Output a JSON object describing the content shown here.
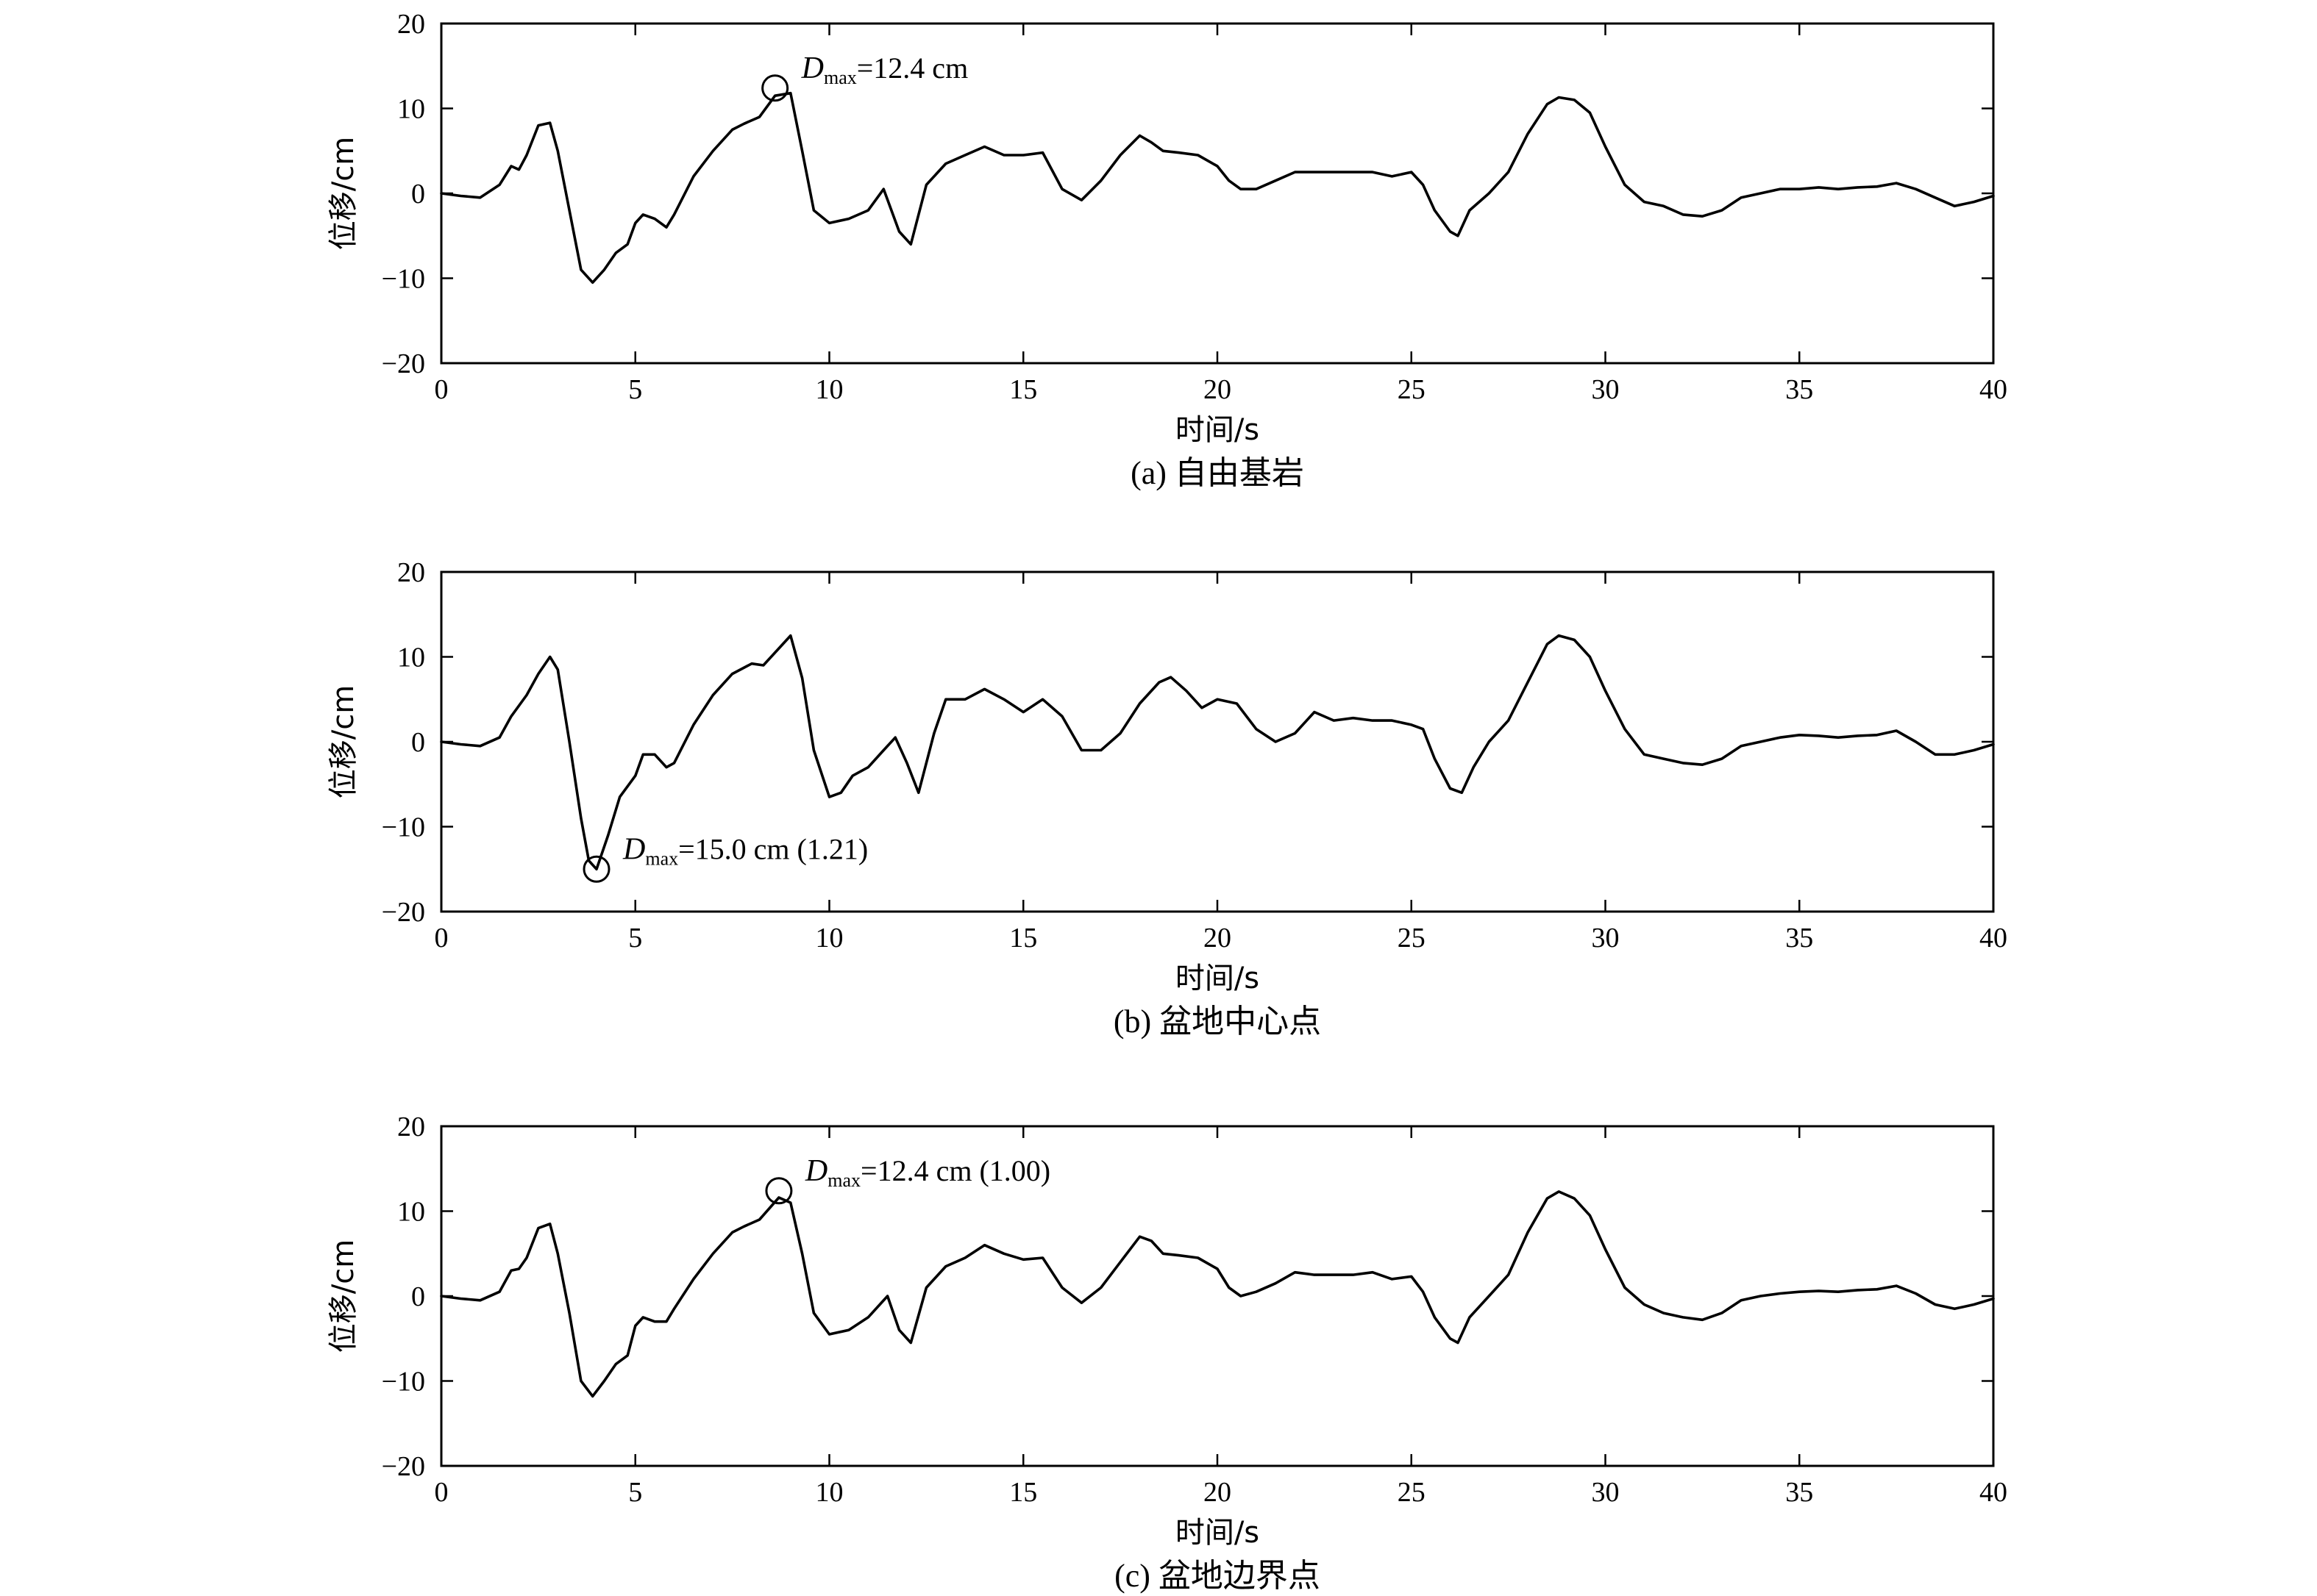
{
  "chart_data": [
    {
      "type": "line",
      "caption": "(a) 自由基岩",
      "xlabel": "时间/s",
      "ylabel": "位移/cm",
      "xlim": [
        0,
        40
      ],
      "ylim": [
        -20,
        20
      ],
      "xticks": [
        0,
        5,
        10,
        15,
        20,
        25,
        30,
        35,
        40
      ],
      "yticks": [
        20,
        10,
        0,
        -10,
        -20
      ],
      "ytick_labels": [
        "20",
        "10",
        "0",
        "−10",
        "−20"
      ],
      "annotation": {
        "symbol": "D",
        "subscript": "max",
        "text": "=12.4 cm",
        "x": 8.6,
        "y": 12.4,
        "position": "right"
      },
      "series": [
        {
          "x": [
            0,
            0.5,
            1.0,
            1.5,
            1.8,
            2.0,
            2.2,
            2.5,
            2.8,
            3.0,
            3.3,
            3.6,
            3.9,
            4.2,
            4.5,
            4.8,
            5.0,
            5.2,
            5.5,
            5.8,
            6.0,
            6.5,
            7.0,
            7.5,
            7.8,
            8.2,
            8.6,
            9.0,
            9.3,
            9.6,
            10.0,
            10.5,
            11.0,
            11.4,
            11.8,
            12.1,
            12.5,
            13.0,
            13.5,
            14.0,
            14.5,
            15.0,
            15.5,
            16.0,
            16.5,
            17.0,
            17.5,
            18.0,
            18.3,
            18.6,
            19.0,
            19.5,
            20.0,
            20.3,
            20.6,
            21.0,
            21.5,
            22.0,
            22.5,
            23.0,
            23.5,
            24.0,
            24.5,
            25.0,
            25.3,
            25.6,
            26.0,
            26.2,
            26.5,
            27.0,
            27.5,
            28.0,
            28.5,
            28.8,
            29.2,
            29.6,
            30.0,
            30.5,
            31.0,
            31.5,
            32.0,
            32.5,
            33.0,
            33.5,
            34.0,
            34.5,
            35.0,
            35.5,
            36.0,
            36.5,
            37.0,
            37.5,
            38.0,
            38.5,
            39.0,
            39.5,
            40.0
          ],
          "y": [
            0,
            -0.3,
            -0.5,
            1.0,
            3.2,
            2.8,
            4.5,
            8.0,
            8.3,
            5.0,
            -2.0,
            -9.0,
            -10.5,
            -9.0,
            -7.0,
            -6.0,
            -3.5,
            -2.5,
            -3.0,
            -4.0,
            -2.5,
            2.0,
            5.0,
            7.5,
            8.2,
            9.0,
            11.5,
            11.8,
            5.0,
            -2.0,
            -3.5,
            -3.0,
            -2.0,
            0.5,
            -4.5,
            -6.0,
            1.0,
            3.5,
            4.5,
            5.5,
            4.5,
            4.5,
            4.8,
            0.5,
            -0.8,
            1.5,
            4.5,
            6.8,
            6.0,
            5.0,
            4.8,
            4.5,
            3.2,
            1.5,
            0.5,
            0.5,
            1.5,
            2.5,
            2.5,
            2.5,
            2.5,
            2.5,
            2.0,
            2.5,
            1.0,
            -2.0,
            -4.5,
            -5.0,
            -2.0,
            0.0,
            2.5,
            7.0,
            10.5,
            11.3,
            11.0,
            9.5,
            5.5,
            1.0,
            -1.0,
            -1.5,
            -2.5,
            -2.7,
            -2.0,
            -0.5,
            0.0,
            0.5,
            0.5,
            0.7,
            0.5,
            0.7,
            0.8,
            1.2,
            0.5,
            -0.5,
            -1.5,
            -1.0,
            -0.3
          ]
        }
      ]
    },
    {
      "type": "line",
      "caption": "(b) 盆地中心点",
      "xlabel": "时间/s",
      "ylabel": "位移/cm",
      "xlim": [
        0,
        40
      ],
      "ylim": [
        -20,
        20
      ],
      "xticks": [
        0,
        5,
        10,
        15,
        20,
        25,
        30,
        35,
        40
      ],
      "yticks": [
        20,
        10,
        0,
        -10,
        -20
      ],
      "ytick_labels": [
        "20",
        "10",
        "0",
        "−10",
        "−20"
      ],
      "annotation": {
        "symbol": "D",
        "subscript": "max",
        "text": "=15.0 cm (1.21)",
        "x": 4.0,
        "y": -15.0,
        "position": "right"
      },
      "series": [
        {
          "x": [
            0,
            0.5,
            1.0,
            1.5,
            1.8,
            2.2,
            2.5,
            2.8,
            3.0,
            3.3,
            3.6,
            3.8,
            4.0,
            4.3,
            4.6,
            5.0,
            5.2,
            5.5,
            5.8,
            6.0,
            6.5,
            7.0,
            7.5,
            8.0,
            8.3,
            8.7,
            9.0,
            9.3,
            9.6,
            10.0,
            10.3,
            10.6,
            11.0,
            11.4,
            11.7,
            12.0,
            12.3,
            12.7,
            13.0,
            13.5,
            14.0,
            14.5,
            15.0,
            15.5,
            16.0,
            16.5,
            17.0,
            17.5,
            18.0,
            18.5,
            18.8,
            19.2,
            19.6,
            20.0,
            20.5,
            21.0,
            21.5,
            22.0,
            22.5,
            23.0,
            23.5,
            24.0,
            24.5,
            25.0,
            25.3,
            25.6,
            26.0,
            26.3,
            26.6,
            27.0,
            27.5,
            28.0,
            28.5,
            28.8,
            29.2,
            29.6,
            30.0,
            30.5,
            31.0,
            31.5,
            32.0,
            32.5,
            33.0,
            33.5,
            34.0,
            34.5,
            35.0,
            35.5,
            36.0,
            36.5,
            37.0,
            37.5,
            38.0,
            38.5,
            39.0,
            39.5,
            40.0
          ],
          "y": [
            0,
            -0.3,
            -0.5,
            0.5,
            3.0,
            5.5,
            8.0,
            10.0,
            8.5,
            0.0,
            -9.0,
            -14.0,
            -15.0,
            -11.0,
            -6.5,
            -4.0,
            -1.5,
            -1.5,
            -3.0,
            -2.5,
            2.0,
            5.5,
            8.0,
            9.2,
            9.0,
            11.0,
            12.5,
            7.5,
            -1.0,
            -6.5,
            -6.0,
            -4.0,
            -3.0,
            -1.0,
            0.5,
            -2.5,
            -6.0,
            1.0,
            5.0,
            5.0,
            6.2,
            5.0,
            3.5,
            5.0,
            3.0,
            -1.0,
            -1.0,
            1.0,
            4.5,
            7.0,
            7.6,
            6.0,
            4.0,
            5.0,
            4.5,
            1.5,
            0.0,
            1.0,
            3.5,
            2.5,
            2.8,
            2.5,
            2.5,
            2.0,
            1.5,
            -2.0,
            -5.5,
            -6.0,
            -3.0,
            0.0,
            2.5,
            7.0,
            11.5,
            12.5,
            12.0,
            10.0,
            6.0,
            1.5,
            -1.5,
            -2.0,
            -2.5,
            -2.7,
            -2.0,
            -0.5,
            0.0,
            0.5,
            0.8,
            0.7,
            0.5,
            0.7,
            0.8,
            1.3,
            0.0,
            -1.5,
            -1.5,
            -1.0,
            -0.3
          ]
        }
      ]
    },
    {
      "type": "line",
      "caption": "(c) 盆地边界点",
      "xlabel": "时间/s",
      "ylabel": "位移/cm",
      "xlim": [
        0,
        40
      ],
      "ylim": [
        -20,
        20
      ],
      "xticks": [
        0,
        5,
        10,
        15,
        20,
        25,
        30,
        35,
        40
      ],
      "yticks": [
        20,
        10,
        0,
        -10,
        -20
      ],
      "ytick_labels": [
        "20",
        "10",
        "0",
        "−10",
        "−20"
      ],
      "annotation": {
        "symbol": "D",
        "subscript": "max",
        "text": "=12.4 cm (1.00)",
        "x": 8.7,
        "y": 12.4,
        "position": "right"
      },
      "series": [
        {
          "x": [
            0,
            0.5,
            1.0,
            1.5,
            1.8,
            2.0,
            2.2,
            2.5,
            2.8,
            3.0,
            3.3,
            3.6,
            3.9,
            4.2,
            4.5,
            4.8,
            5.0,
            5.2,
            5.5,
            5.8,
            6.0,
            6.5,
            7.0,
            7.5,
            7.8,
            8.2,
            8.7,
            9.0,
            9.3,
            9.6,
            10.0,
            10.5,
            11.0,
            11.5,
            11.8,
            12.1,
            12.5,
            13.0,
            13.5,
            14.0,
            14.5,
            15.0,
            15.5,
            16.0,
            16.5,
            17.0,
            17.5,
            18.0,
            18.3,
            18.6,
            19.0,
            19.5,
            20.0,
            20.3,
            20.6,
            21.0,
            21.5,
            22.0,
            22.5,
            23.0,
            23.5,
            24.0,
            24.5,
            25.0,
            25.3,
            25.6,
            26.0,
            26.2,
            26.5,
            27.0,
            27.5,
            28.0,
            28.5,
            28.8,
            29.2,
            29.6,
            30.0,
            30.5,
            31.0,
            31.5,
            32.0,
            32.5,
            33.0,
            33.5,
            34.0,
            34.5,
            35.0,
            35.5,
            36.0,
            36.5,
            37.0,
            37.5,
            38.0,
            38.5,
            39.0,
            39.5,
            40.0
          ],
          "y": [
            0,
            -0.3,
            -0.5,
            0.5,
            3.0,
            3.2,
            4.5,
            8.0,
            8.5,
            5.0,
            -2.0,
            -10.0,
            -11.8,
            -10.0,
            -8.0,
            -7.0,
            -3.5,
            -2.5,
            -3.0,
            -3.0,
            -1.5,
            2.0,
            5.0,
            7.5,
            8.2,
            9.0,
            11.6,
            11.0,
            5.0,
            -2.0,
            -4.5,
            -4.0,
            -2.5,
            0.0,
            -4.0,
            -5.5,
            1.0,
            3.5,
            4.5,
            6.0,
            5.0,
            4.3,
            4.5,
            1.0,
            -0.8,
            1.0,
            4.0,
            7.0,
            6.5,
            5.0,
            4.8,
            4.5,
            3.2,
            1.0,
            0.0,
            0.5,
            1.5,
            2.8,
            2.5,
            2.5,
            2.5,
            2.8,
            2.0,
            2.3,
            0.5,
            -2.5,
            -5.0,
            -5.5,
            -2.5,
            0.0,
            2.5,
            7.5,
            11.5,
            12.3,
            11.5,
            9.5,
            5.5,
            1.0,
            -1.0,
            -2.0,
            -2.5,
            -2.8,
            -2.0,
            -0.5,
            0.0,
            0.3,
            0.5,
            0.6,
            0.5,
            0.7,
            0.8,
            1.2,
            0.3,
            -1.0,
            -1.5,
            -1.0,
            -0.3
          ]
        }
      ]
    }
  ]
}
